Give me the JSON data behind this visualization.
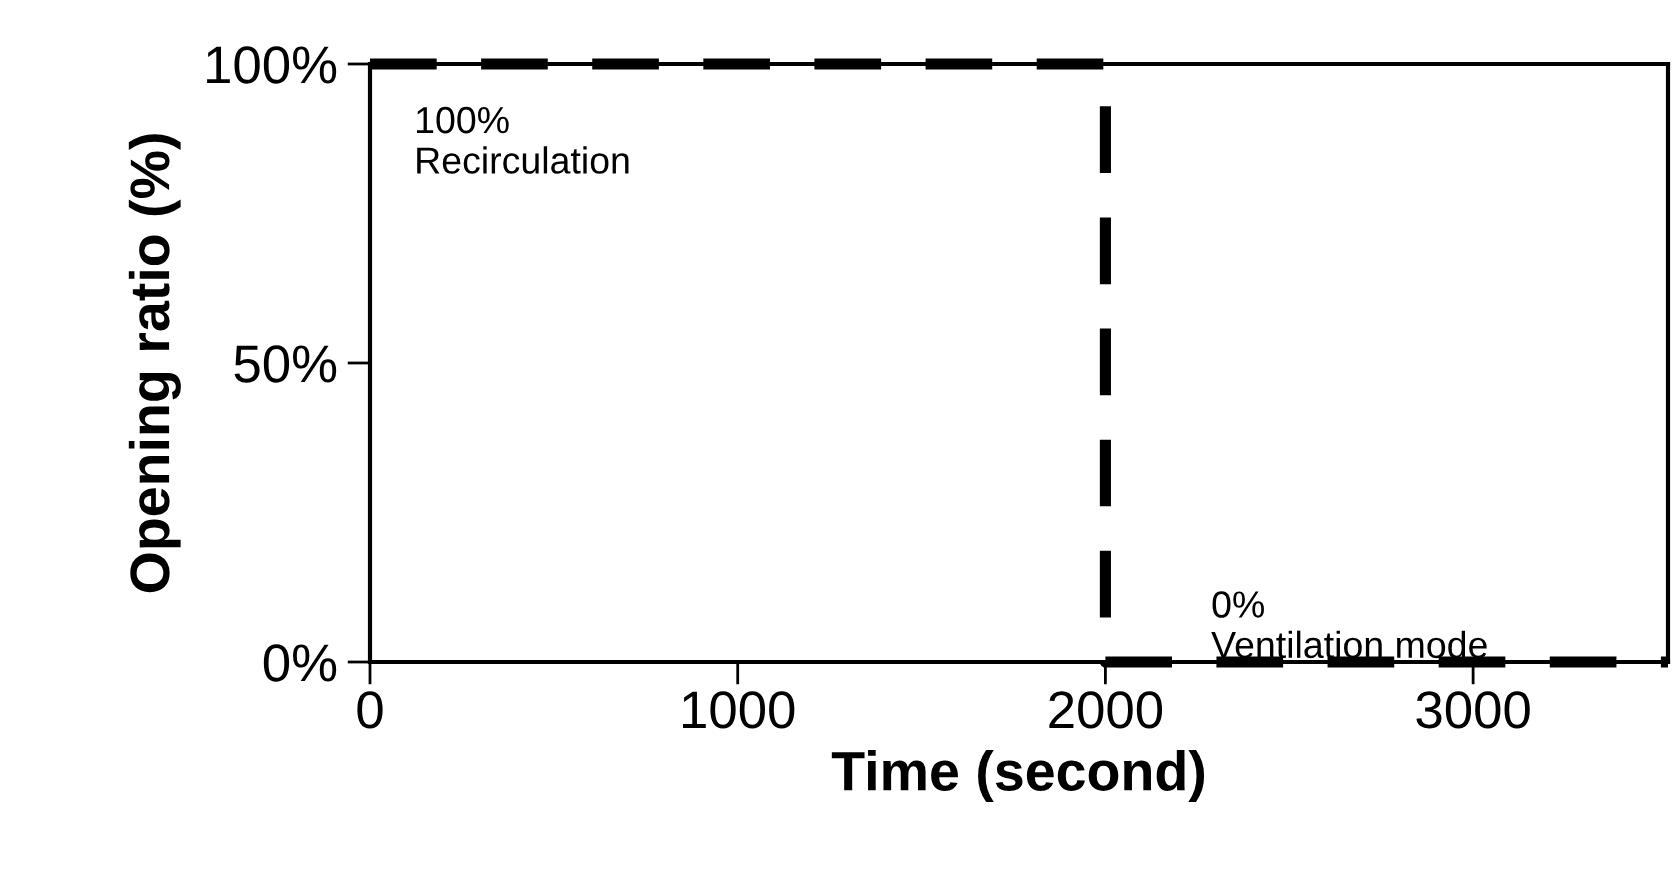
{
  "chart_data": {
    "type": "step",
    "xlabel": "Time (second)",
    "ylabel": "Opening ratio (%)",
    "x": [
      0,
      2000,
      3530
    ],
    "series": [
      {
        "color": "#000000",
        "values": [
          100,
          0,
          0
        ]
      }
    ],
    "line_style": "dashed",
    "marker": "none",
    "grid": false,
    "legend": false,
    "xlim": [
      0,
      3530
    ],
    "xticks": [
      0,
      1000,
      2000,
      3000
    ],
    "ylim": [
      0,
      100
    ],
    "yticks": [
      {
        "value": 0,
        "label": "0%"
      },
      {
        "value": 50,
        "label": "50%"
      },
      {
        "value": 100,
        "label": "100%"
      }
    ],
    "annotations": [
      "100%\nRecirculation",
      "0%\nVentilation mode"
    ]
  }
}
